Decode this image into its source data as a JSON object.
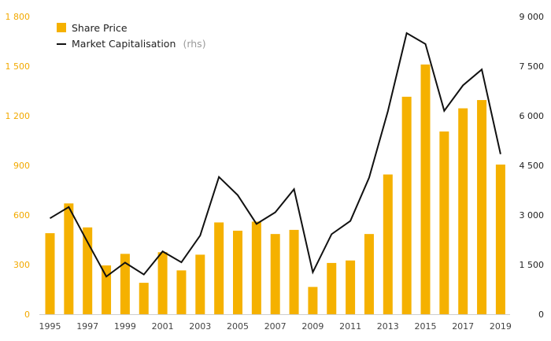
{
  "chart_data": {
    "type": "bar",
    "categories": [
      "1995",
      "1996",
      "1997",
      "1998",
      "1999",
      "2000",
      "2001",
      "2002",
      "2003",
      "2004",
      "2005",
      "2006",
      "2007",
      "2008",
      "2009",
      "2010",
      "2011",
      "2012",
      "2013",
      "2014",
      "2015",
      "2016",
      "2017",
      "2018",
      "2019"
    ],
    "x_tick_labels": [
      "1995",
      "1997",
      "1999",
      "2001",
      "2003",
      "2005",
      "2007",
      "2009",
      "2011",
      "2013",
      "2015",
      "2017",
      "2019"
    ],
    "series": [
      {
        "name": "Share Price",
        "type": "bar",
        "axis": "left",
        "color": "#f5b100",
        "values": [
          490,
          670,
          525,
          295,
          365,
          190,
          375,
          265,
          360,
          555,
          505,
          560,
          485,
          510,
          165,
          310,
          325,
          485,
          845,
          1315,
          1510,
          1105,
          1245,
          1295,
          905
        ]
      },
      {
        "name": "Market Capitalisation",
        "name_note": "(rhs)",
        "type": "line",
        "axis": "right",
        "color": "#111111",
        "values": [
          2900,
          3240,
          2180,
          1140,
          1560,
          1200,
          1900,
          1570,
          2380,
          4150,
          3600,
          2730,
          3080,
          3780,
          1270,
          2420,
          2820,
          4130,
          6140,
          8500,
          8170,
          6150,
          6920,
          7400,
          4840
        ]
      }
    ],
    "y_left": {
      "ylim": [
        0,
        1800
      ],
      "ticks": [
        0,
        300,
        600,
        900,
        1200,
        1500,
        1800
      ],
      "tick_labels": [
        "0",
        "300",
        "600",
        "900",
        "1 200",
        "1 500",
        "1 800"
      ],
      "color": "#f2a900"
    },
    "y_right": {
      "ylim": [
        0,
        9000
      ],
      "ticks": [
        0,
        1500,
        3000,
        4500,
        6000,
        7500,
        9000
      ],
      "tick_labels": [
        "0",
        "1 500",
        "3 000",
        "4 500",
        "6 000",
        "7 500",
        "9 000"
      ],
      "color": "#222222"
    },
    "grid": false,
    "legend_position": "top-left"
  }
}
